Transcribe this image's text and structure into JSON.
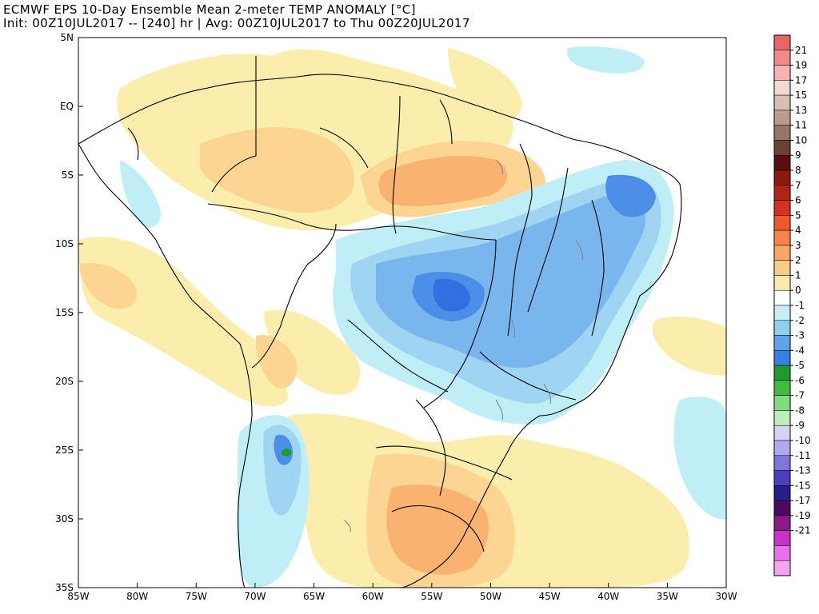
{
  "title": {
    "line1": "ECMWF EPS 10-Day Ensemble Mean 2-meter TEMP ANOMALY [°C]",
    "line2": "Init: 00Z10JUL2017 -- [240] hr | Avg: 00Z10JUL2017 to Thu 00Z20JUL2017"
  },
  "axes": {
    "lat_labels": [
      "5N",
      "EQ",
      "5S",
      "10S",
      "15S",
      "20S",
      "25S",
      "30S",
      "35S"
    ],
    "lon_labels": [
      "85W",
      "80W",
      "75W",
      "70W",
      "65W",
      "60W",
      "55W",
      "50W",
      "45W",
      "40W",
      "35W",
      "30W"
    ]
  },
  "colorbar": {
    "labels": [
      "21",
      "19",
      "17",
      "15",
      "13",
      "11",
      "10",
      "9",
      "8",
      "7",
      "6",
      "5",
      "4",
      "3",
      "2",
      "1",
      "0",
      "-1",
      "-2",
      "-3",
      "-4",
      "-5",
      "-6",
      "-7",
      "-8",
      "-9",
      "-10",
      "-11",
      "-13",
      "-15",
      "-17",
      "-19",
      "-21"
    ],
    "colors": [
      "#e8636a",
      "#f08a8a",
      "#f6b3b3",
      "#f3d8cf",
      "#d9bfb3",
      "#b89d8f",
      "#977668",
      "#6b4132",
      "#5a0f0f",
      "#8c1a10",
      "#b22217",
      "#d7301f",
      "#ef5a2a",
      "#f7834a",
      "#f9a766",
      "#fccb8a",
      "#fde9a8",
      "#ffffff",
      "#c8eef6",
      "#8fd0ef",
      "#5fa3ea",
      "#3a7ee3",
      "#1a9b2a",
      "#40bb40",
      "#7fdc7f",
      "#bcefbc",
      "#d7d2f5",
      "#b0a8ec",
      "#8174dd",
      "#4b3fbf",
      "#2a1d8c",
      "#4b0a5e",
      "#8a1a8a",
      "#c534c5",
      "#ec6fec",
      "#f5a6f0"
    ]
  },
  "colors": {
    "warm1": "#fbeead",
    "warm2": "#fcd592",
    "warm3": "#f9b26f",
    "warm4": "#f29a5c",
    "cool1": "#bfeef7",
    "cool2": "#9fd4f2",
    "cool3": "#79b6ee",
    "cool4": "#4a8ee8",
    "cool5": "#2f6fe0",
    "green": "#1a9b2a",
    "border": "#000000",
    "lake": "#808080"
  }
}
